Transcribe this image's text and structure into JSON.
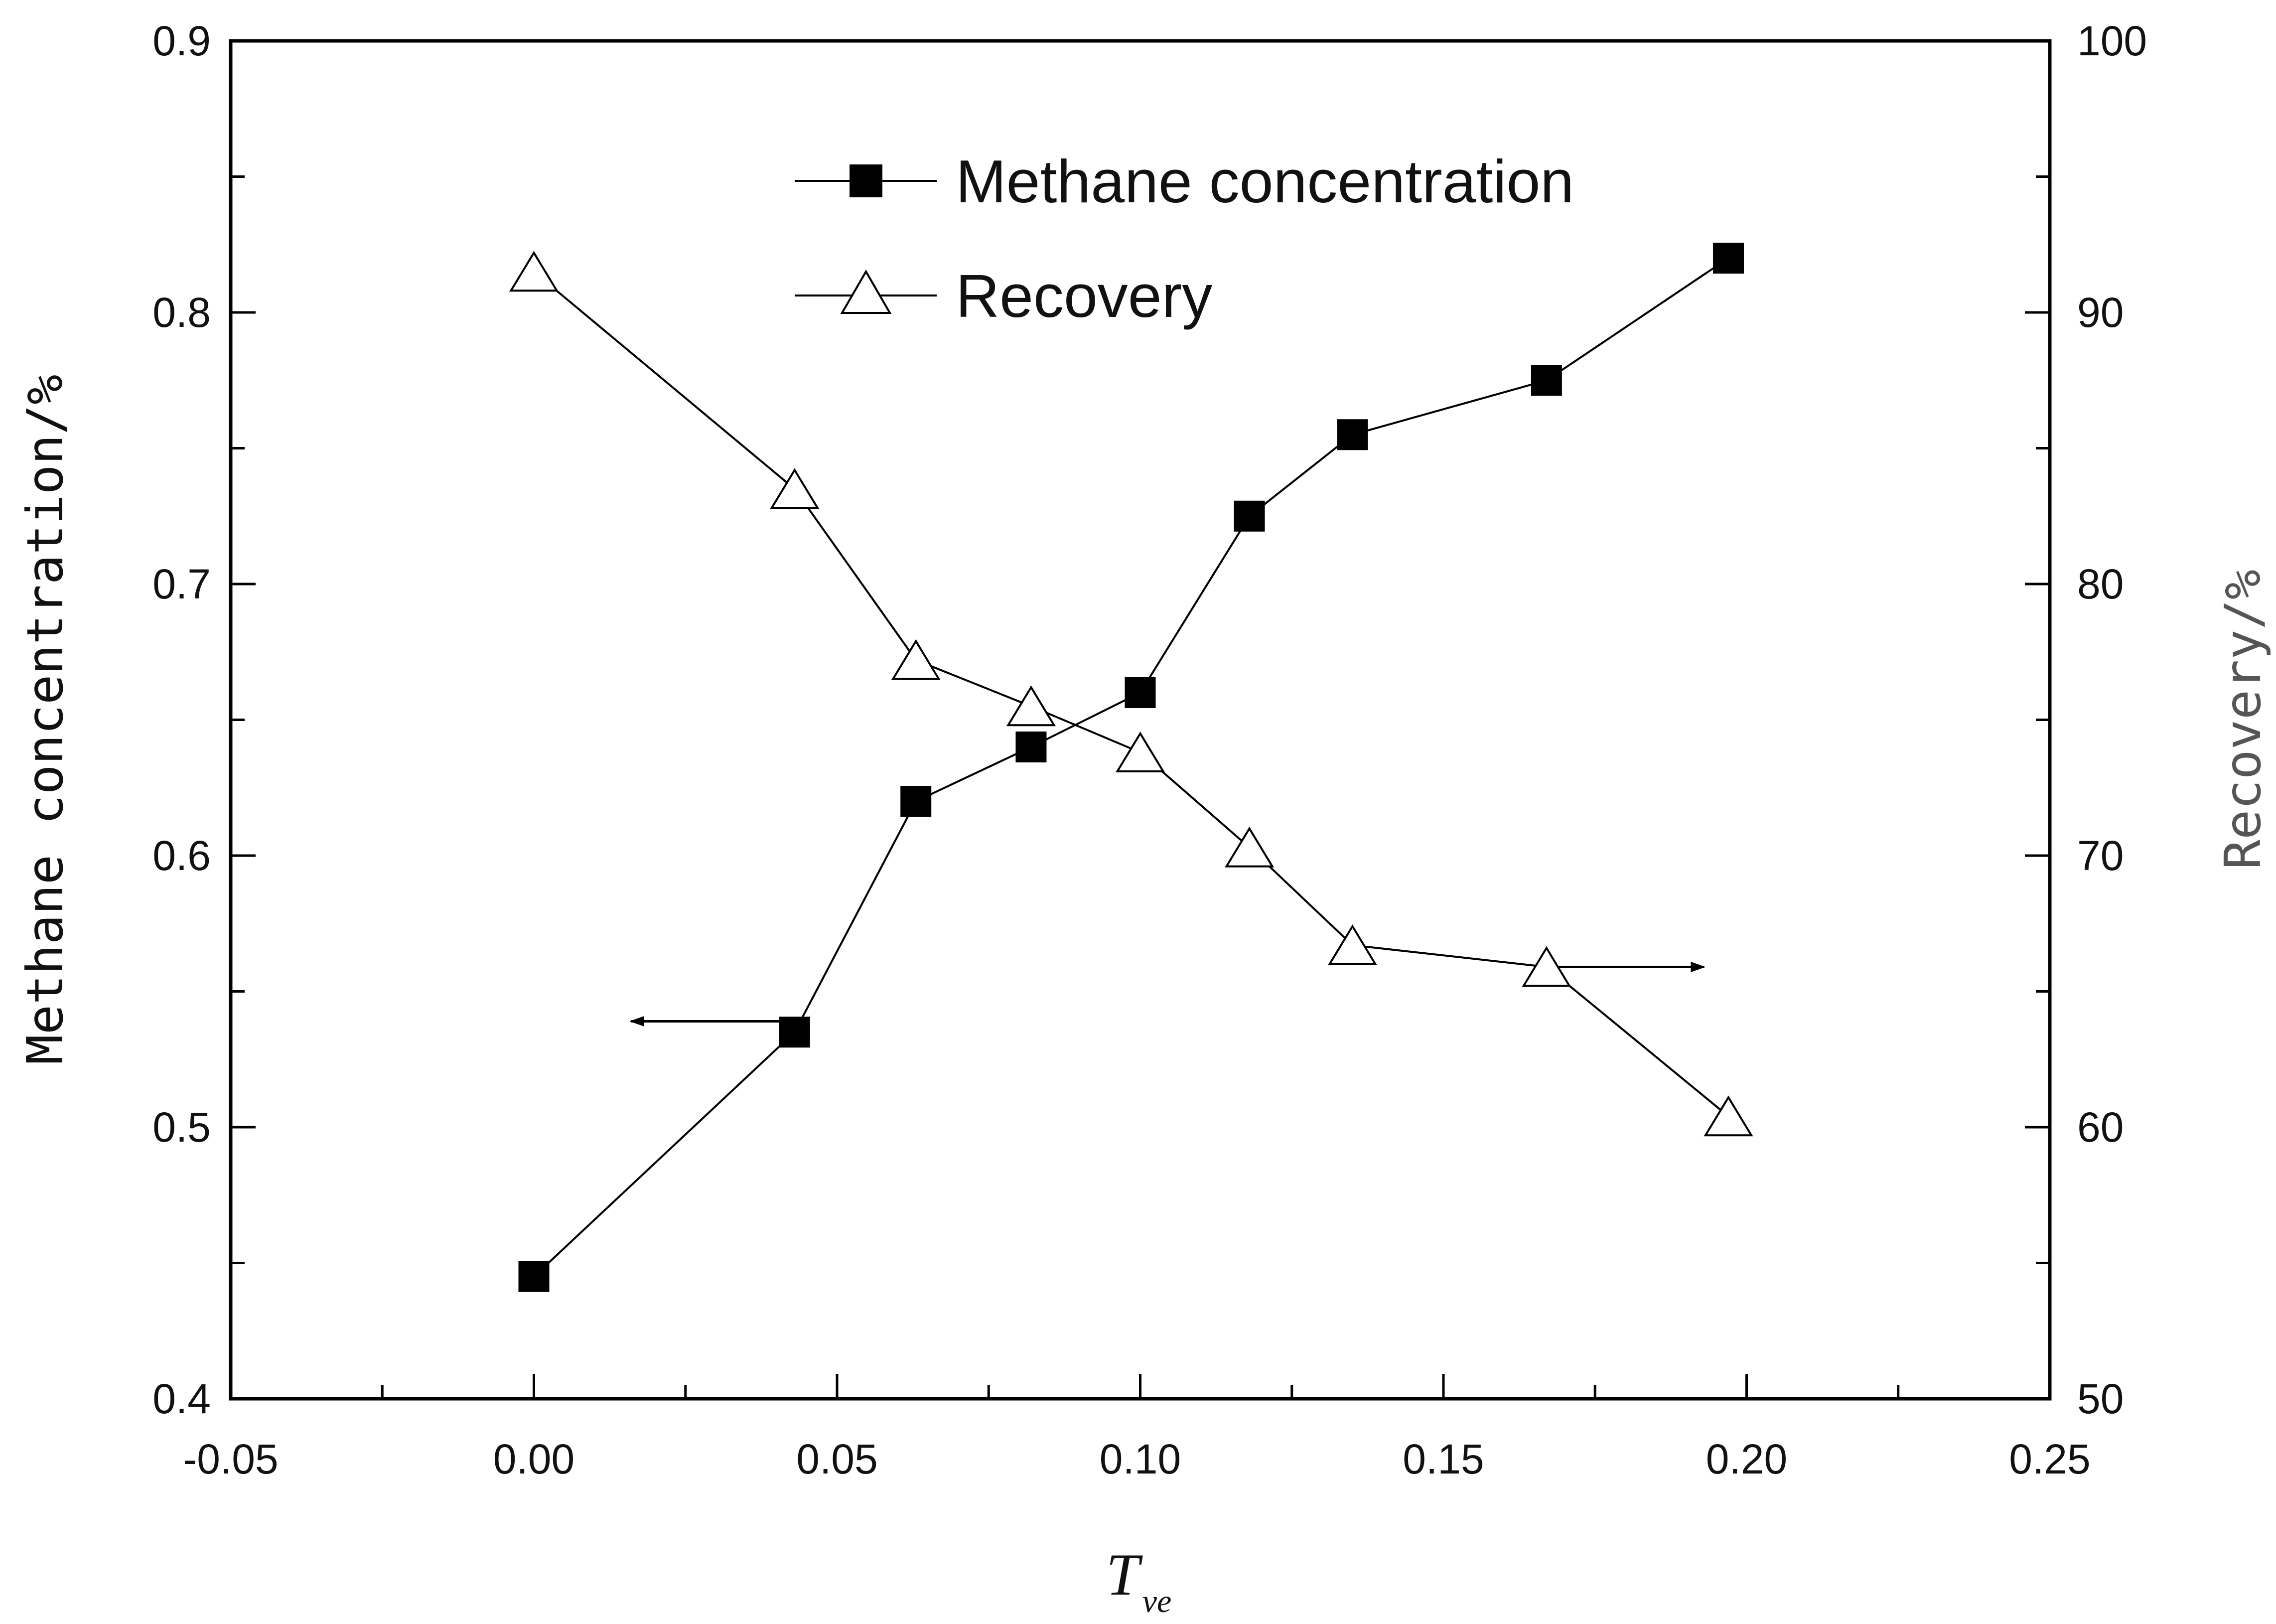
{
  "chart_data": {
    "type": "line",
    "title": "",
    "xlabel": {
      "main": "T",
      "subscript": "ve"
    },
    "ylabel": "Methane concentration/%",
    "y2label": "Recovery/%",
    "xlim": [
      -0.05,
      0.25
    ],
    "ylim": [
      0.4,
      0.9
    ],
    "y2lim": [
      50,
      100
    ],
    "x_ticks": [
      "-0.05",
      "0.00",
      "0.05",
      "0.10",
      "0.15",
      "0.20",
      "0.25"
    ],
    "y_ticks": [
      "0.4",
      "0.5",
      "0.6",
      "0.7",
      "0.8",
      "0.9"
    ],
    "y2_ticks": [
      "50",
      "60",
      "70",
      "80",
      "90",
      "100"
    ],
    "grid": false,
    "legend_position": "top-center",
    "series": [
      {
        "name": "Methane concentration",
        "axis": "left",
        "marker": "filled-square",
        "color": "#000000",
        "x": [
          0.0,
          0.043,
          0.063,
          0.082,
          0.1,
          0.118,
          0.135,
          0.167,
          0.197
        ],
        "y": [
          0.445,
          0.535,
          0.62,
          0.64,
          0.66,
          0.725,
          0.755,
          0.775,
          0.82
        ]
      },
      {
        "name": "Recovery",
        "axis": "right",
        "marker": "open-triangle",
        "color": "#000000",
        "x": [
          0.0,
          0.043,
          0.063,
          0.082,
          0.1,
          0.118,
          0.135,
          0.167,
          0.197
        ],
        "y": [
          91.5,
          83.5,
          77.2,
          75.5,
          73.8,
          70.3,
          66.7,
          65.9,
          60.4
        ]
      }
    ],
    "annotations": [
      {
        "type": "arrow",
        "series": "Methane concentration",
        "points_to": "left axis",
        "from": [
          0.043,
          0.539
        ],
        "to": [
          0.016,
          0.539
        ]
      },
      {
        "type": "arrow",
        "series": "Recovery",
        "points_to": "right axis",
        "from": [
          0.167,
          65.9
        ],
        "to": [
          0.193,
          65.9
        ]
      }
    ]
  }
}
